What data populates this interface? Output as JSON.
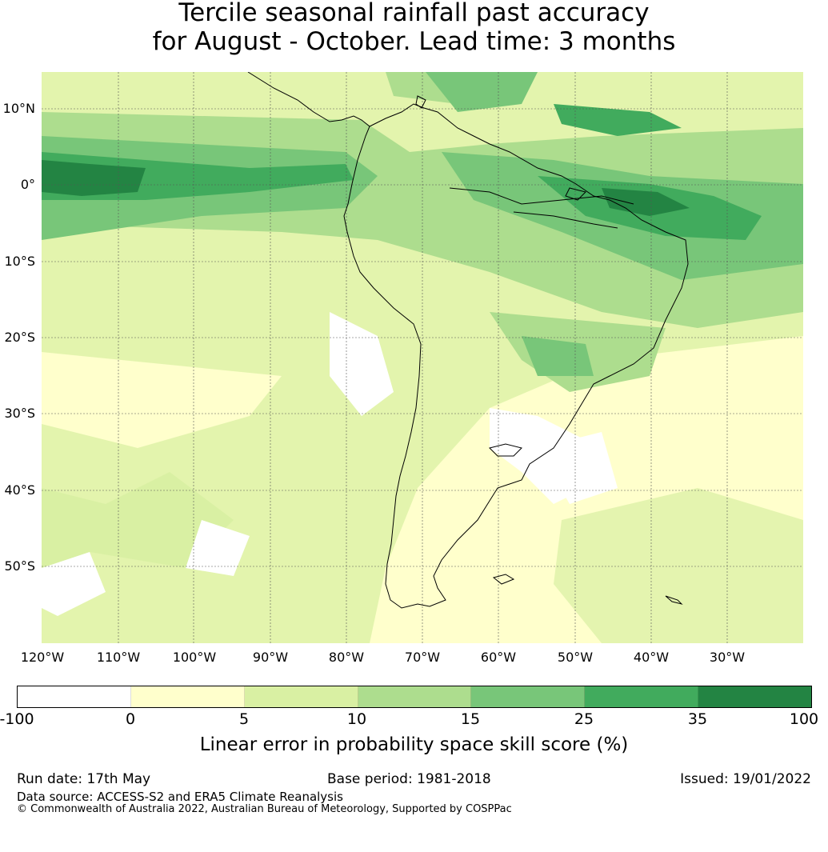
{
  "title": {
    "line1": "Tercile seasonal rainfall past accuracy",
    "line2": "for August - October. Lead time: 3 months"
  },
  "map": {
    "region": "South America and surrounding oceans",
    "lat_labels": [
      "10°N",
      "0°",
      "10°S",
      "20°S",
      "30°S",
      "40°S",
      "50°S"
    ],
    "lon_labels": [
      "120°W",
      "110°W",
      "100°W",
      "90°W",
      "80°W",
      "70°W",
      "60°W",
      "50°W",
      "40°W",
      "30°W"
    ],
    "gridlines": true,
    "coastline_color": "#000000"
  },
  "colorbar": {
    "ticks": [
      "-100",
      "0",
      "5",
      "10",
      "15",
      "25",
      "35",
      "100"
    ],
    "colors": [
      "#ffffff",
      "#ffffcc",
      "#d9f0a3",
      "#addd8e",
      "#78c679",
      "#41ab5d",
      "#238443"
    ],
    "label": "Linear error in probability space skill score (%)"
  },
  "footer": {
    "run_date": "Run date: 17th May",
    "base_period": "Base period: 1981-2018",
    "issued": "Issued: 19/01/2022",
    "data_source": "Data source: ACCESS-S2 and ERA5 Climate Reanalysis",
    "copyright": "© Commonwealth of Australia 2022, Australian Bureau of Meteorology, Supported by COSPPac"
  }
}
